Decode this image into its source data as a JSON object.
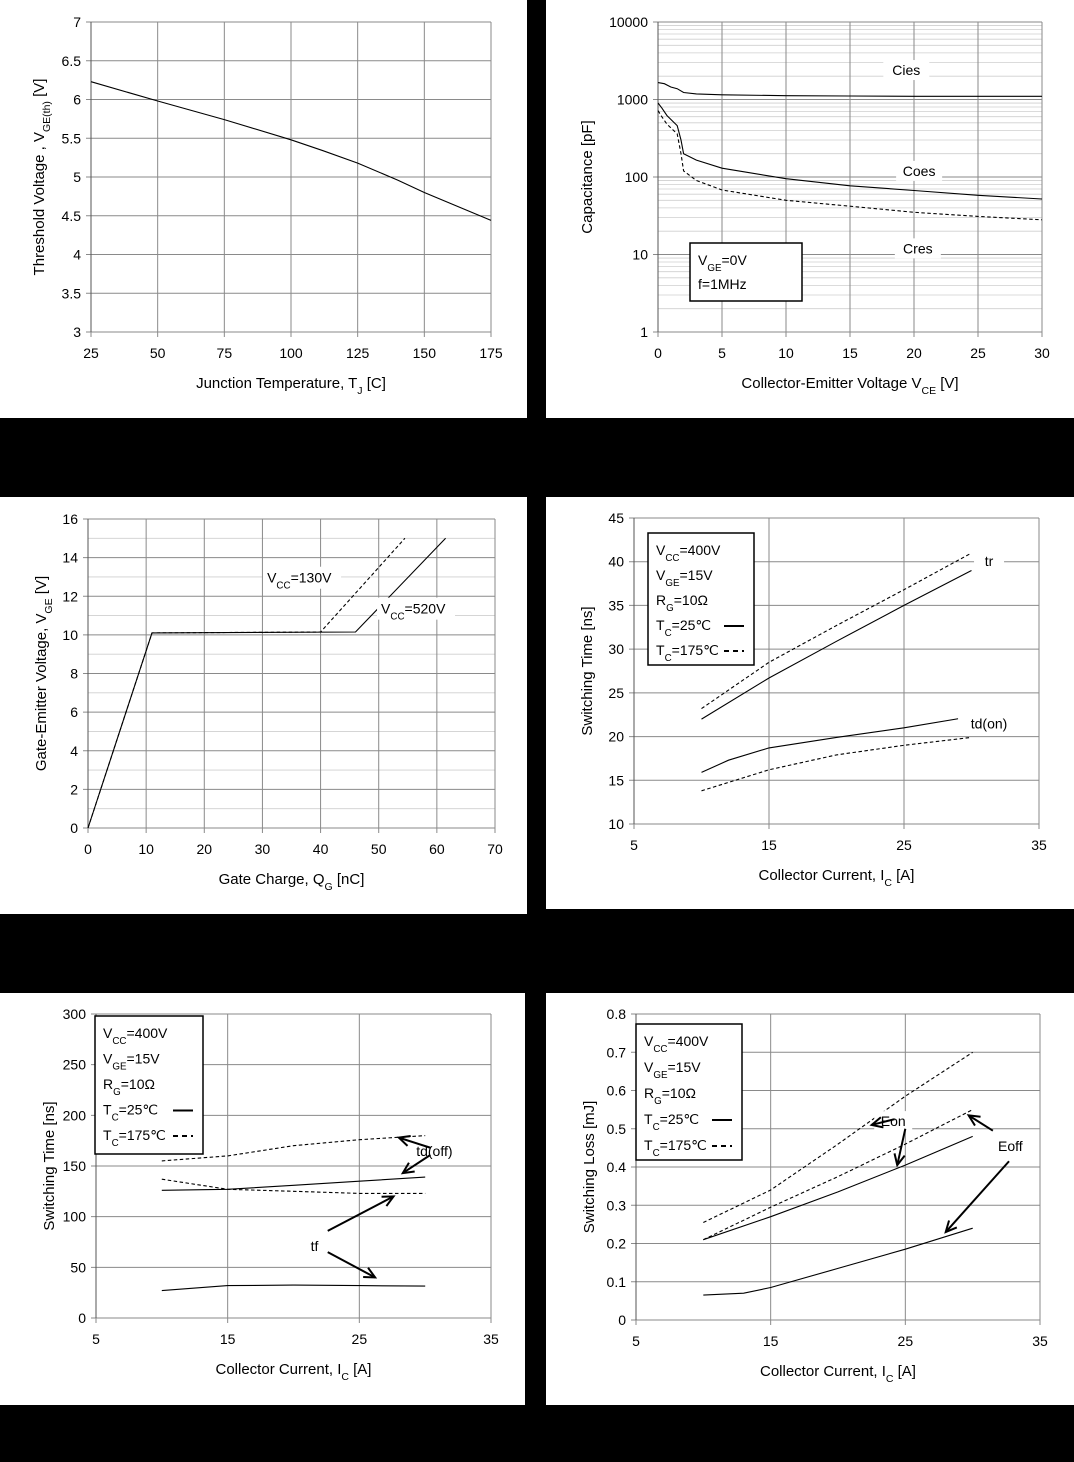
{
  "charts": [
    {
      "type": "line",
      "title": "",
      "xlabel": {
        "main": "Junction Temperature, T",
        "sub": "J",
        "after": " [C]"
      },
      "ylabel": {
        "main": "Threshold Voltage , V",
        "sub": "GE(th)",
        "after": " [V]"
      },
      "xlim": [
        25,
        175
      ],
      "ylim": [
        3,
        7
      ],
      "xticks": [
        25,
        50,
        75,
        100,
        125,
        150,
        175
      ],
      "yticks": [
        3,
        3.5,
        4,
        4.5,
        5,
        5.5,
        6,
        6.5,
        7
      ],
      "ytick_labels": [
        "3",
        "3.5",
        "4",
        "4.5",
        "5",
        "5.5",
        "6",
        "6.5",
        "7"
      ],
      "minor_y": [],
      "series": [
        {
          "name": "VGE(th)",
          "dash": "solid",
          "points": [
            [
              25,
              6.23
            ],
            [
              50,
              5.98
            ],
            [
              75,
              5.74
            ],
            [
              100,
              5.48
            ],
            [
              112,
              5.34
            ],
            [
              125,
              5.18
            ],
            [
              140,
              4.96
            ],
            [
              150,
              4.8
            ],
            [
              175,
              4.44
            ]
          ]
        }
      ],
      "labels": [],
      "arrows": [],
      "legend": null
    },
    {
      "type": "line",
      "scale_y": "log",
      "title": "",
      "xlabel": {
        "main": "Collector-Emitter Voltage V",
        "sub": "CE",
        "after": " [V]"
      },
      "ylabel": {
        "main": "Capacitance [pF]",
        "sub": "",
        "after": ""
      },
      "xlim": [
        0,
        30
      ],
      "ylim": [
        1,
        10000
      ],
      "xticks": [
        0,
        5,
        10,
        15,
        20,
        25,
        30
      ],
      "yticks": [
        1,
        10,
        100,
        1000,
        10000
      ],
      "ytick_labels": [
        "1",
        "10",
        "100",
        "1000",
        "10000"
      ],
      "minor_y": [
        2,
        3,
        4,
        5,
        6,
        7,
        8,
        9,
        20,
        30,
        40,
        50,
        60,
        70,
        80,
        90,
        200,
        300,
        400,
        500,
        600,
        700,
        800,
        900,
        2000,
        3000,
        4000,
        5000,
        6000,
        7000,
        8000,
        9000
      ],
      "series": [
        {
          "name": "Cies",
          "dash": "solid",
          "points": [
            [
              0,
              1650
            ],
            [
              0.5,
              1600
            ],
            [
              1,
              1450
            ],
            [
              1.5,
              1380
            ],
            [
              2,
              1230
            ],
            [
              3,
              1180
            ],
            [
              5,
              1150
            ],
            [
              10,
              1120
            ],
            [
              15,
              1110
            ],
            [
              20,
              1100
            ],
            [
              25,
              1100
            ],
            [
              30,
              1100
            ]
          ]
        },
        {
          "name": "Coes",
          "dash": "solid",
          "points": [
            [
              0,
              900
            ],
            [
              0.3,
              780
            ],
            [
              0.7,
              620
            ],
            [
              1.5,
              460
            ],
            [
              1.8,
              300
            ],
            [
              2.0,
              200
            ],
            [
              3,
              165
            ],
            [
              5,
              130
            ],
            [
              10,
              95
            ],
            [
              15,
              77
            ],
            [
              20,
              67
            ],
            [
              25,
              58
            ],
            [
              30,
              52
            ]
          ]
        },
        {
          "name": "Cres",
          "dash": "dash",
          "points": [
            [
              0,
              720
            ],
            [
              0.3,
              600
            ],
            [
              0.7,
              480
            ],
            [
              1.5,
              360
            ],
            [
              1.8,
              200
            ],
            [
              2.0,
              120
            ],
            [
              3,
              90
            ],
            [
              5,
              68
            ],
            [
              10,
              50
            ],
            [
              15,
              42
            ],
            [
              20,
              35
            ],
            [
              25,
              31
            ],
            [
              30,
              28
            ]
          ]
        }
      ],
      "labels": [
        {
          "text": "Cies",
          "x": 19.4,
          "y": 2400
        },
        {
          "text": "Coes",
          "x": 20.4,
          "y": 120
        },
        {
          "text": "Cres",
          "x": 20.3,
          "y": 12
        }
      ],
      "arrows": [],
      "legend": {
        "lines": [
          {
            "pre": "V",
            "sub": "GE",
            "post": "=0V",
            "sample": ""
          },
          {
            "pre": "f=1MHz",
            "sub": "",
            "post": "",
            "sample": ""
          }
        ]
      }
    },
    {
      "type": "line",
      "title": "",
      "xlabel": {
        "main": "Gate Charge, Q",
        "sub": "G",
        "after": " [nC]"
      },
      "ylabel": {
        "main": "Gate-Emitter Voltage, V",
        "sub": "GE",
        "after": " [V]"
      },
      "xlim": [
        0,
        70
      ],
      "ylim": [
        0,
        16
      ],
      "xticks": [
        0,
        10,
        20,
        30,
        40,
        50,
        60,
        70
      ],
      "yticks": [
        0,
        2,
        4,
        6,
        8,
        10,
        12,
        14,
        16
      ],
      "ytick_labels": [
        "0",
        "2",
        "4",
        "6",
        "8",
        "10",
        "12",
        "14",
        "16"
      ],
      "minor_y": [
        1,
        3,
        5,
        7,
        9,
        11,
        13,
        15
      ],
      "series": [
        {
          "name": "VCC=520V",
          "dash": "solid",
          "points": [
            [
              0,
              0
            ],
            [
              11,
              10.1
            ],
            [
              46,
              10.15
            ],
            [
              61.5,
              15
            ]
          ]
        },
        {
          "name": "VCC=130V",
          "dash": "dash",
          "points": [
            [
              0,
              0
            ],
            [
              11,
              10.1
            ],
            [
              40,
              10.15
            ],
            [
              54.5,
              15
            ]
          ]
        }
      ],
      "labels": [
        {
          "pre": "V",
          "sub": "CC",
          "post": "=130V",
          "x": 30.8,
          "y": 12.7
        },
        {
          "pre": "V",
          "sub": "CC",
          "post": "=520V",
          "x": 50.4,
          "y": 11.1
        }
      ],
      "arrows": [],
      "legend": null
    },
    {
      "type": "line",
      "title": "",
      "xlabel": {
        "main": "Collector Current, I",
        "sub": "C",
        "after": " [A]"
      },
      "ylabel": {
        "main": "Switching Time [ns]",
        "sub": "",
        "after": ""
      },
      "xlim": [
        5,
        35
      ],
      "ylim": [
        10,
        45
      ],
      "xticks": [
        5,
        15,
        25,
        35
      ],
      "yticks": [
        10,
        15,
        20,
        25,
        30,
        35,
        40,
        45
      ],
      "ytick_labels": [
        "10",
        "15",
        "20",
        "25",
        "30",
        "35",
        "40",
        "45"
      ],
      "minor_y": [],
      "series": [
        {
          "name": "tr 25C",
          "dash": "solid",
          "points": [
            [
              10,
              22
            ],
            [
              15,
              26.7
            ],
            [
              20,
              30.9
            ],
            [
              25,
              35
            ],
            [
              30,
              39
            ]
          ]
        },
        {
          "name": "tr 175C",
          "dash": "dash",
          "points": [
            [
              10,
              23.2
            ],
            [
              15,
              28.5
            ],
            [
              20,
              32.7
            ],
            [
              25,
              36.8
            ],
            [
              30,
              41
            ]
          ]
        },
        {
          "name": "td(on) 25C",
          "dash": "solid",
          "points": [
            [
              10,
              15.9
            ],
            [
              12,
              17.3
            ],
            [
              15,
              18.7
            ],
            [
              20,
              19.9
            ],
            [
              25,
              21
            ],
            [
              30,
              22.3
            ]
          ]
        },
        {
          "name": "td(on) 175C",
          "dash": "dash",
          "points": [
            [
              10,
              13.8
            ],
            [
              15,
              16.2
            ],
            [
              20,
              17.9
            ],
            [
              25,
              19
            ],
            [
              30,
              19.9
            ]
          ]
        }
      ],
      "labels": [
        {
          "text": "tr",
          "x": 31.3,
          "y": 40.1
        },
        {
          "text": "td(on)",
          "x": 31.3,
          "y": 21.5
        }
      ],
      "arrows": [],
      "legend": {
        "lines": [
          {
            "pre": "V",
            "sub": "CC",
            "post": "=400V",
            "sample": ""
          },
          {
            "pre": "V",
            "sub": "GE",
            "post": "=15V",
            "sample": ""
          },
          {
            "pre": "R",
            "sub": "G",
            "post": "=10Ω",
            "sample": ""
          },
          {
            "pre": "T",
            "sub": "C",
            "post": "=25℃",
            "sample": "solid"
          },
          {
            "pre": "T",
            "sub": "C",
            "post": "=175℃",
            "sample": "dash"
          }
        ]
      }
    },
    {
      "type": "line",
      "title": "",
      "xlabel": {
        "main": "Collector Current, I",
        "sub": "C",
        "after": " [A]"
      },
      "ylabel": {
        "main": "Switching Time [ns]",
        "sub": "",
        "after": ""
      },
      "xlim": [
        5,
        35
      ],
      "ylim": [
        0,
        300
      ],
      "xticks": [
        5,
        15,
        25,
        35
      ],
      "yticks": [
        0,
        50,
        100,
        150,
        200,
        250,
        300
      ],
      "ytick_labels": [
        "0",
        "50",
        "100",
        "150",
        "200",
        "250",
        "300"
      ],
      "minor_y": [],
      "series": [
        {
          "name": "td(off) 175C",
          "dash": "dash",
          "points": [
            [
              10,
              155
            ],
            [
              15,
              160
            ],
            [
              20,
              170
            ],
            [
              25,
              176
            ],
            [
              30,
              180
            ]
          ]
        },
        {
          "name": "td(off) 25C",
          "dash": "solid",
          "points": [
            [
              10,
              126
            ],
            [
              15,
              127
            ],
            [
              20,
              131
            ],
            [
              25,
              135
            ],
            [
              30,
              139
            ]
          ]
        },
        {
          "name": "tf 175C",
          "dash": "dash",
          "points": [
            [
              10,
              137
            ],
            [
              15,
              127
            ],
            [
              20,
              125
            ],
            [
              25,
              123
            ],
            [
              30,
              123
            ]
          ]
        },
        {
          "name": "tf 25C",
          "dash": "solid",
          "points": [
            [
              10,
              27
            ],
            [
              15,
              32
            ],
            [
              20,
              32.5
            ],
            [
              25,
              32
            ],
            [
              30,
              31.5
            ]
          ]
        }
      ],
      "labels": [
        {
          "text": "td(off)",
          "x": 30.7,
          "y": 165
        },
        {
          "text": "tf",
          "x": 21.6,
          "y": 71
        }
      ],
      "arrows": [
        {
          "x1": 30.4,
          "y1": 168,
          "x2": 28.0,
          "y2": 178
        },
        {
          "x1": 30.4,
          "y1": 161,
          "x2": 28.3,
          "y2": 143
        },
        {
          "x1": 22.6,
          "y1": 86,
          "x2": 27.6,
          "y2": 120
        },
        {
          "x1": 22.6,
          "y1": 65,
          "x2": 26.2,
          "y2": 40
        }
      ],
      "legend": {
        "lines": [
          {
            "pre": "V",
            "sub": "CC",
            "post": "=400V",
            "sample": ""
          },
          {
            "pre": "V",
            "sub": "GE",
            "post": "=15V",
            "sample": ""
          },
          {
            "pre": "R",
            "sub": "G",
            "post": "=10Ω",
            "sample": ""
          },
          {
            "pre": "T",
            "sub": "C",
            "post": "=25℃",
            "sample": "solid"
          },
          {
            "pre": "T",
            "sub": "C",
            "post": "=175℃",
            "sample": "dash"
          }
        ]
      }
    },
    {
      "type": "line",
      "title": "",
      "xlabel": {
        "main": "Collector Current, I",
        "sub": "C",
        "after": " [A]"
      },
      "ylabel": {
        "main": "Switching Loss  [mJ]",
        "sub": "",
        "after": ""
      },
      "xlim": [
        5,
        35
      ],
      "ylim": [
        0,
        0.8
      ],
      "xticks": [
        5,
        15,
        25,
        35
      ],
      "yticks": [
        0,
        0.1,
        0.2,
        0.3,
        0.4,
        0.5,
        0.6,
        0.7,
        0.8
      ],
      "ytick_labels": [
        "0",
        "0.1",
        "0.2",
        "0.3",
        "0.4",
        "0.5",
        "0.6",
        "0.7",
        "0.8"
      ],
      "minor_y": [],
      "series": [
        {
          "name": "Eon 175C",
          "dash": "dash",
          "points": [
            [
              10,
              0.255
            ],
            [
              15,
              0.34
            ],
            [
              20,
              0.46
            ],
            [
              25,
              0.585
            ],
            [
              30,
              0.7
            ]
          ]
        },
        {
          "name": "Eoff 175C",
          "dash": "dash",
          "points": [
            [
              10,
              0.21
            ],
            [
              15,
              0.295
            ],
            [
              20,
              0.375
            ],
            [
              25,
              0.46
            ],
            [
              30,
              0.55
            ]
          ]
        },
        {
          "name": "Eon 25C",
          "dash": "solid",
          "points": [
            [
              10,
              0.21
            ],
            [
              15,
              0.27
            ],
            [
              20,
              0.335
            ],
            [
              25,
              0.405
            ],
            [
              30,
              0.48
            ]
          ]
        },
        {
          "name": "Eoff 25C",
          "dash": "solid",
          "points": [
            [
              10,
              0.065
            ],
            [
              13,
              0.07
            ],
            [
              15,
              0.085
            ],
            [
              20,
              0.135
            ],
            [
              25,
              0.185
            ],
            [
              30,
              0.24
            ]
          ]
        }
      ],
      "labels": [
        {
          "text": "Eon",
          "x": 24.1,
          "y": 0.52
        },
        {
          "text": "Eoff",
          "x": 32.8,
          "y": 0.455
        }
      ],
      "arrows": [
        {
          "x1": 24.2,
          "y1": 0.525,
          "x2": 22.5,
          "y2": 0.51
        },
        {
          "x1": 25.0,
          "y1": 0.5,
          "x2": 24.4,
          "y2": 0.405
        },
        {
          "x1": 31.5,
          "y1": 0.495,
          "x2": 29.7,
          "y2": 0.535
        },
        {
          "x1": 32.7,
          "y1": 0.415,
          "x2": 28.0,
          "y2": 0.23
        }
      ],
      "legend": {
        "lines": [
          {
            "pre": "V",
            "sub": "CC",
            "post": "=400V",
            "sample": ""
          },
          {
            "pre": "V",
            "sub": "GE",
            "post": "=15V",
            "sample": ""
          },
          {
            "pre": "R",
            "sub": "G",
            "post": "=10Ω",
            "sample": ""
          },
          {
            "pre": "T",
            "sub": "C",
            "post": "=25℃",
            "sample": "solid"
          },
          {
            "pre": "T",
            "sub": "C",
            "post": "=175℃",
            "sample": "dash"
          }
        ]
      }
    }
  ]
}
